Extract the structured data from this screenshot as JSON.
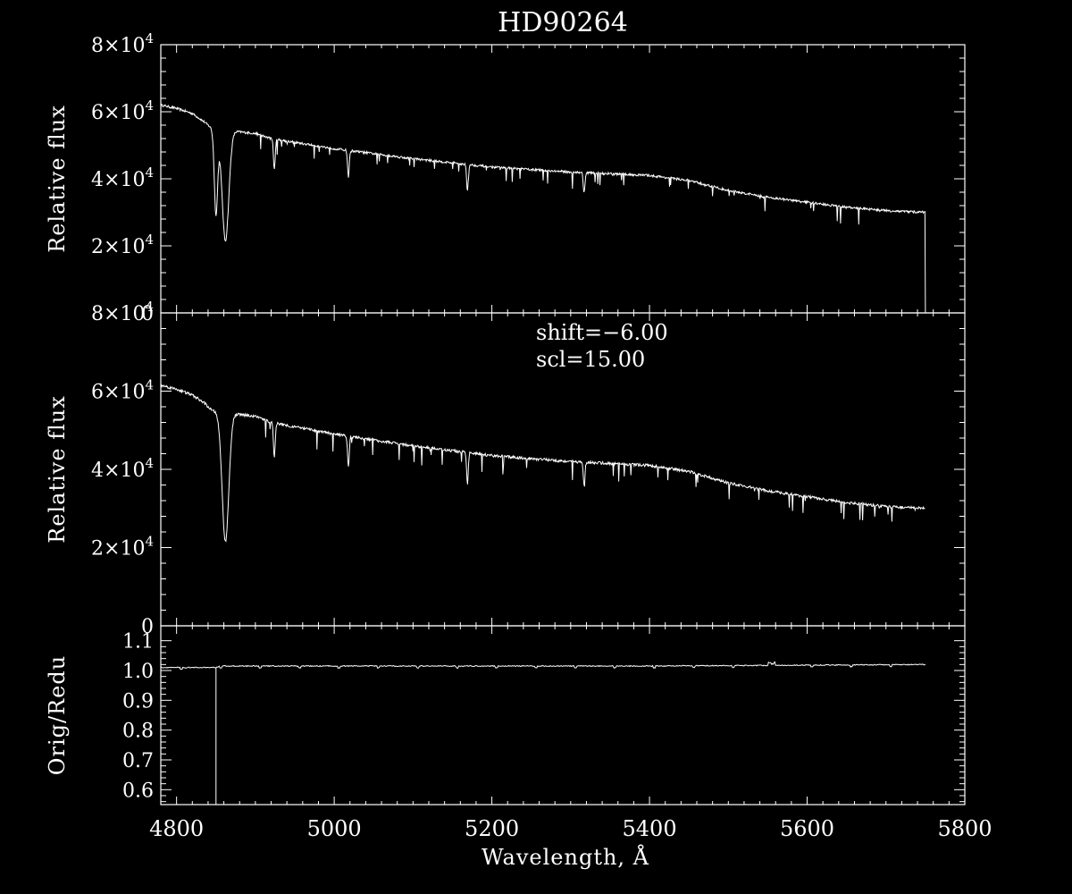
{
  "chart_data": {
    "type": "line",
    "title": "HD90264",
    "xlabel": "Wavelength, Å",
    "xlim": [
      4780,
      5800
    ],
    "x_ticks": [
      "4800",
      "5000",
      "5200",
      "5400",
      "5600",
      "5800"
    ],
    "x_tick_values": [
      4800,
      5000,
      5200,
      5400,
      5600,
      5800
    ],
    "colors": {
      "background": "#000000",
      "foreground": "#ffffff"
    },
    "panels": [
      {
        "name": "original",
        "ylabel": "Relative flux",
        "ylim": [
          0,
          80000
        ],
        "y_ticks": [
          {
            "value": 0,
            "mant": "0",
            "exp": ""
          },
          {
            "value": 20000,
            "mant": "2×10",
            "exp": "4"
          },
          {
            "value": 40000,
            "mant": "4×10",
            "exp": "4"
          },
          {
            "value": 60000,
            "mant": "6×10",
            "exp": "4"
          },
          {
            "value": 80000,
            "mant": "8×10",
            "exp": "4"
          }
        ],
        "annotations": [],
        "series": [
          {
            "continuum_x": [
              4780,
              4800,
              4820,
              4835,
              4845,
              4880,
              4900,
              4920,
              5000,
              5100,
              5200,
              5300,
              5400,
              5450,
              5500,
              5550,
              5600,
              5650,
              5700,
              5750
            ],
            "continuum_y": [
              62000,
              61000,
              59500,
              57000,
              55000,
              54000,
              53500,
              52000,
              49000,
              46000,
              43500,
              42000,
              41000,
              39500,
              36500,
              34500,
              33000,
              31500,
              30500,
              30000
            ],
            "absorption_lines": [
              {
                "x": 4850,
                "depth": 25000,
                "width": 3
              },
              {
                "x": 4862,
                "depth": 33000,
                "width": 6
              },
              {
                "x": 4924,
                "depth": 9000,
                "width": 1.5
              },
              {
                "x": 5018,
                "depth": 8000,
                "width": 1.5
              },
              {
                "x": 5169,
                "depth": 8000,
                "width": 1.5
              },
              {
                "x": 5317,
                "depth": 6000,
                "width": 1.5
              }
            ],
            "end_drop_x": 5750
          }
        ]
      },
      {
        "name": "reduced",
        "ylabel": "Relative flux",
        "ylim": [
          0,
          80000
        ],
        "y_ticks": [
          {
            "value": 0,
            "mant": "0",
            "exp": ""
          },
          {
            "value": 20000,
            "mant": "2×10",
            "exp": "4"
          },
          {
            "value": 40000,
            "mant": "4×10",
            "exp": "4"
          },
          {
            "value": 60000,
            "mant": "6×10",
            "exp": "4"
          },
          {
            "value": 80000,
            "mant": "8×10",
            "exp": "4"
          }
        ],
        "annotations": [
          "shift=−6.00",
          "scl=15.00"
        ],
        "series": [
          {
            "continuum_x": [
              4780,
              4800,
              4820,
              4835,
              4845,
              4880,
              4900,
              4920,
              5000,
              5100,
              5200,
              5300,
              5400,
              5450,
              5500,
              5550,
              5600,
              5650,
              5700,
              5750
            ],
            "continuum_y": [
              61500,
              60500,
              59000,
              57000,
              55000,
              54000,
              53500,
              52000,
              49000,
              46000,
              43500,
              42000,
              41000,
              39500,
              36500,
              34500,
              33000,
              31500,
              30500,
              30000
            ],
            "absorption_lines": [
              {
                "x": 4862,
                "depth": 33000,
                "width": 6
              },
              {
                "x": 4924,
                "depth": 9000,
                "width": 1.5
              },
              {
                "x": 5018,
                "depth": 8000,
                "width": 1.5
              },
              {
                "x": 5169,
                "depth": 8000,
                "width": 1.5
              },
              {
                "x": 5317,
                "depth": 6000,
                "width": 1.5
              }
            ]
          }
        ]
      },
      {
        "name": "ratio",
        "ylabel": "Orig/Redu",
        "ylim": [
          0.55,
          1.15
        ],
        "y_ticks": [
          {
            "value": 0.6,
            "mant": "0.6",
            "exp": ""
          },
          {
            "value": 0.7,
            "mant": "0.7",
            "exp": ""
          },
          {
            "value": 0.8,
            "mant": "0.8",
            "exp": ""
          },
          {
            "value": 0.9,
            "mant": "0.9",
            "exp": ""
          },
          {
            "value": 1.0,
            "mant": "1.0",
            "exp": ""
          },
          {
            "value": 1.1,
            "mant": "1.1",
            "exp": ""
          }
        ],
        "annotations": [],
        "series": [
          {
            "x": [
              4780,
              4850,
              4855,
              5000,
              5200,
              5400,
              5600,
              5750
            ],
            "y": [
              1.01,
              1.01,
              1.015,
              1.015,
              1.015,
              1.015,
              1.018,
              1.02
            ],
            "drop_at_x": 4850,
            "drop_to_y": 0.55
          }
        ]
      }
    ]
  }
}
